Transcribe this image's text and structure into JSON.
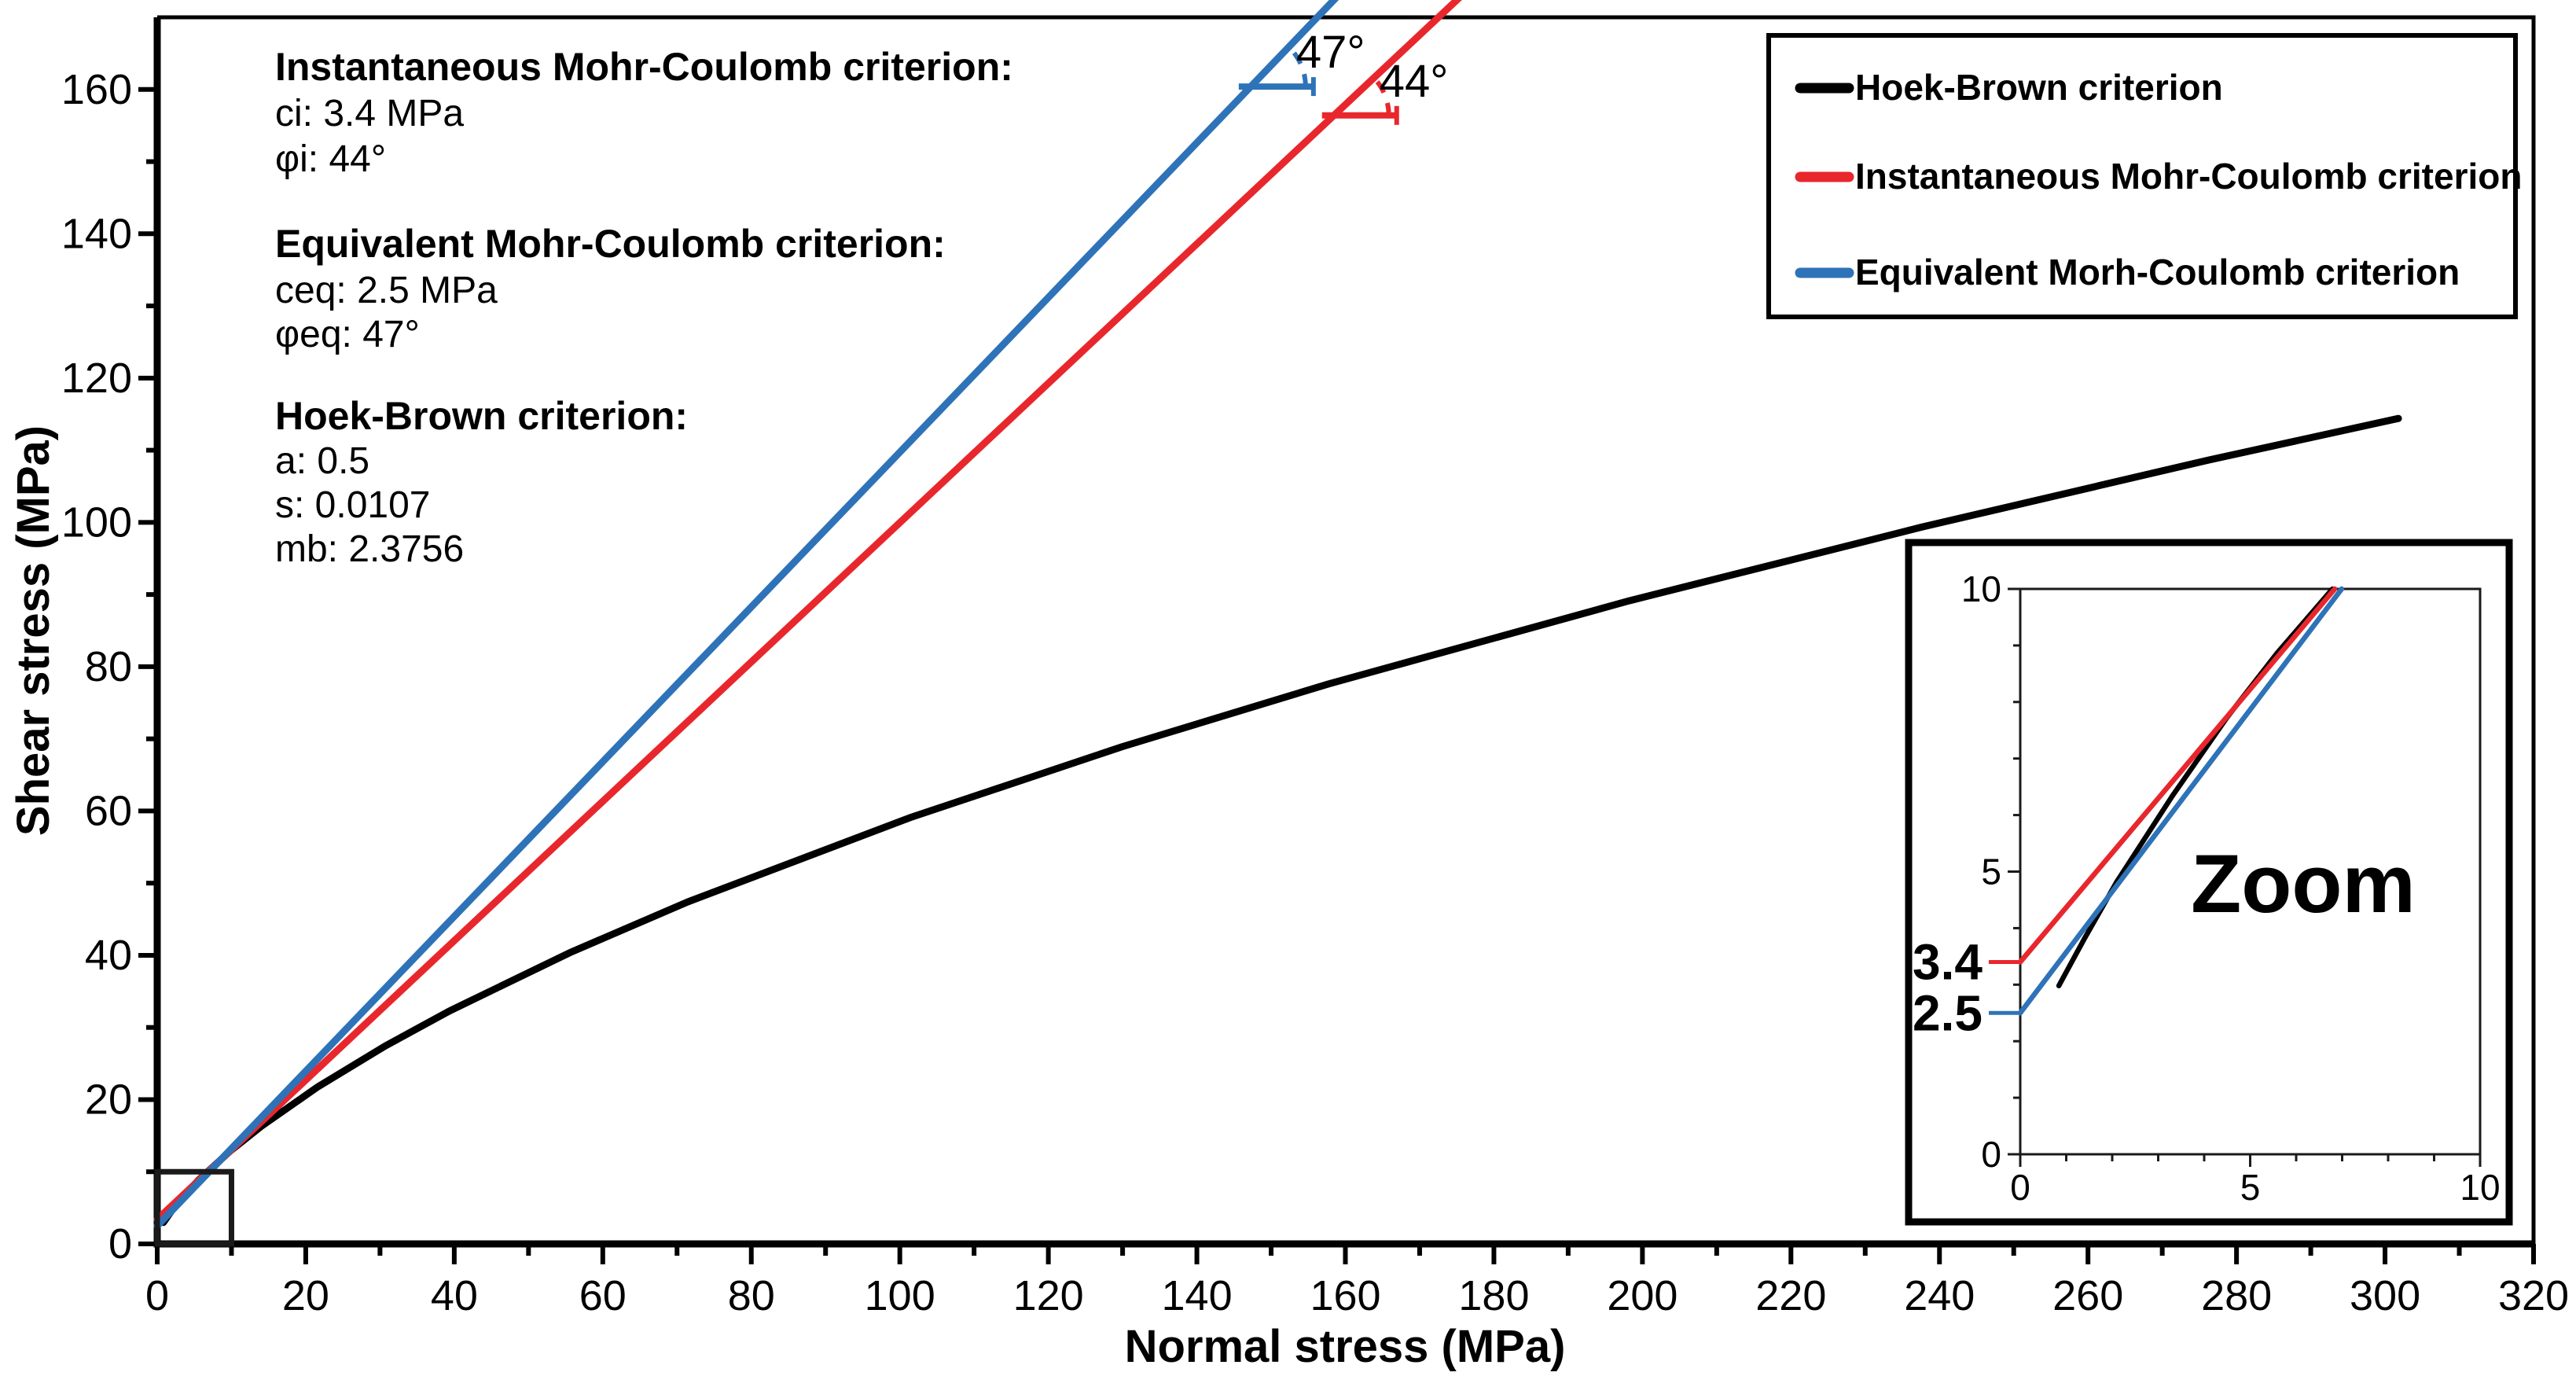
{
  "page": {
    "background": "#ffffff"
  },
  "colors": {
    "hoek_brown": "#000000",
    "instantaneous_mc": "#e8272d",
    "equivalent_mc": "#2e73b8",
    "frame": "#000000"
  },
  "annotation_blocks": [
    {
      "title": "Instantaneous Mohr-Coulomb criterion:",
      "lines": [
        "ci: 3.4 MPa",
        "φi: 44°"
      ]
    },
    {
      "title": "Equivalent Mohr-Coulomb criterion:",
      "lines": [
        "ceq: 2.5 MPa",
        "φeq: 47°"
      ]
    },
    {
      "title": "Hoek-Brown criterion:",
      "lines": [
        "a: 0.5",
        "s: 0.0107",
        "mb: 2.3756"
      ]
    }
  ],
  "legend": {
    "items": [
      {
        "label": "Hoek-Brown criterion",
        "color": "#000000"
      },
      {
        "label": "Instantaneous Mohr-Coulomb criterion",
        "color": "#e8272d"
      },
      {
        "label": "Equivalent Morh-Coulomb criterion",
        "color": "#2e73b8"
      }
    ]
  },
  "chart_data": {
    "type": "line",
    "title": "",
    "xlabel": "Normal stress (MPa)",
    "ylabel": "Shear stress (MPa)",
    "xlim": [
      0,
      320
    ],
    "ylim": [
      0,
      170
    ],
    "x_ticks": [
      0,
      20,
      40,
      60,
      80,
      100,
      120,
      140,
      160,
      180,
      200,
      220,
      240,
      260,
      280,
      300,
      320
    ],
    "x_minor_step": 10,
    "y_ticks": [
      0,
      20,
      40,
      60,
      80,
      100,
      120,
      140,
      160
    ],
    "y_minor_step": 10,
    "grid": false,
    "legend_position": "top-right",
    "series": [
      {
        "name": "Hoek-Brown criterion",
        "color": "#000000",
        "points": [
          [
            0.84,
            2.98
          ],
          [
            2.1,
            4.82
          ],
          [
            3.3,
            6.33
          ],
          [
            5.59,
            8.87
          ],
          [
            9.9,
            12.94
          ],
          [
            13.97,
            16.27
          ],
          [
            21.65,
            21.78
          ],
          [
            30.7,
            27.43
          ],
          [
            39.33,
            32.27
          ],
          [
            55.77,
            40.46
          ],
          [
            71.45,
            47.4
          ],
          [
            101.37,
            59.08
          ],
          [
            130.0,
            68.93
          ],
          [
            157.75,
            77.61
          ],
          [
            198.21,
            89.13
          ],
          [
            237.64,
            99.35
          ],
          [
            276.29,
            108.65
          ],
          [
            301.8,
            114.4
          ]
        ]
      },
      {
        "name": "Instantaneous Mohr-Coulomb criterion",
        "color": "#e8272d",
        "cohesion_mpa": 3.4,
        "friction_angle_deg": 44,
        "points": [
          [
            0,
            3.4
          ],
          [
            172.53,
            170
          ]
        ]
      },
      {
        "name": "Equivalent Morh-Coulomb criterion",
        "color": "#2e73b8",
        "cohesion_mpa": 2.5,
        "friction_angle_deg": 47,
        "points": [
          [
            0,
            2.5
          ],
          [
            156.21,
            170
          ]
        ]
      }
    ],
    "hoek_brown_params": {
      "a": 0.5,
      "s": 0.0107,
      "mb": 2.3756
    },
    "angle_annotations": [
      {
        "text": "47°",
        "angle_deg": 47,
        "color": "#2e73b8",
        "vertex": [
          147.23,
          160.4
        ]
      },
      {
        "text": "44°",
        "angle_deg": 44,
        "color": "#e8272d",
        "vertex": [
          158.44,
          156.4
        ]
      }
    ],
    "zoom_region": {
      "x": [
        0,
        10
      ],
      "y": [
        0,
        10
      ]
    },
    "inset": {
      "label": "Zoom",
      "xlim": [
        0,
        10
      ],
      "ylim": [
        0,
        10
      ],
      "major_ticks": [
        0,
        5,
        10
      ],
      "minor_step": 1,
      "intercept_labels": [
        {
          "text": "3.4",
          "value": 3.4,
          "color": "#e8272d"
        },
        {
          "text": "2.5",
          "value": 2.5,
          "color": "#2e73b8"
        }
      ],
      "series": [
        {
          "name": "Hoek-Brown criterion",
          "color": "#000000",
          "points": [
            [
              0.84,
              2.98
            ],
            [
              1.4,
              3.82
            ],
            [
              2.1,
              4.82
            ],
            [
              3.3,
              6.33
            ],
            [
              4.5,
              7.73
            ],
            [
              5.59,
              8.87
            ],
            [
              6.79,
              10
            ]
          ]
        },
        {
          "name": "Instantaneous Mohr-Coulomb criterion",
          "color": "#e8272d",
          "points": [
            [
              0,
              3.4
            ],
            [
              6.84,
              10
            ]
          ]
        },
        {
          "name": "Equivalent Morh-Coulomb criterion",
          "color": "#2e73b8",
          "points": [
            [
              0,
              2.5
            ],
            [
              6.99,
              10
            ]
          ]
        }
      ]
    }
  }
}
